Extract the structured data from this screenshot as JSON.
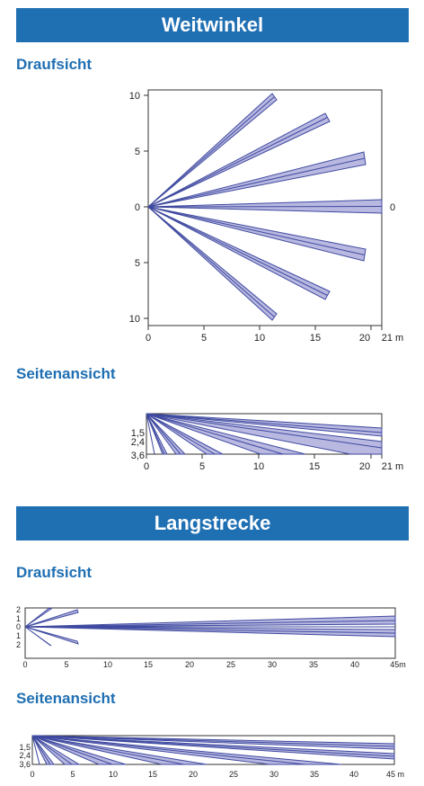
{
  "colors": {
    "banner": "#1f6fb3",
    "heading": "#1f6fb3",
    "beam_fill": "#b8b8e0",
    "beam_stroke": "#3f4aa0"
  },
  "sections": {
    "wide": {
      "title": "Weitwinkel",
      "top_view": {
        "heading": "Draufsicht",
        "y_ticks": [
          "10",
          "5",
          "0",
          "5",
          "10"
        ],
        "x_ticks": [
          "0",
          "5",
          "10",
          "15",
          "20"
        ],
        "x_unit": "21 m",
        "right_label": "0"
      },
      "side_view": {
        "heading": "Seitenansicht",
        "y_ticks": [
          "1,5",
          "2,4",
          "3,6"
        ],
        "x_ticks": [
          "0",
          "5",
          "10",
          "15",
          "20"
        ],
        "x_unit": "21 m"
      }
    },
    "long": {
      "title": "Langstrecke",
      "top_view": {
        "heading": "Draufsicht",
        "y_ticks": [
          "2",
          "1",
          "0",
          "1",
          "2"
        ],
        "x_ticks": [
          "0",
          "5",
          "10",
          "15",
          "20",
          "25",
          "30",
          "35",
          "40"
        ],
        "x_unit": "45m"
      },
      "side_view": {
        "heading": "Seitenansicht",
        "y_ticks": [
          "1,5",
          "2,4",
          "3,6"
        ],
        "x_ticks": [
          "0",
          "5",
          "10",
          "15",
          "20",
          "25",
          "30",
          "35",
          "40"
        ],
        "x_unit": "45 m"
      }
    }
  }
}
